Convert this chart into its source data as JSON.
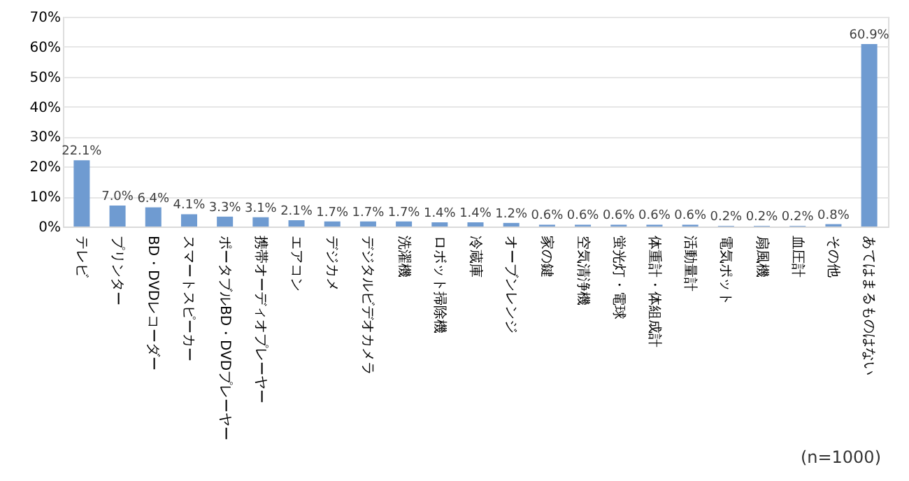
{
  "chart_data": {
    "type": "bar",
    "categories": [
      "テレビ",
      "プリンター",
      "BD・DVDレコーダー",
      "スマートスピーカー",
      "ポータブルBD・DVDプレーヤー",
      "携帯オーディオプレーヤー",
      "エアコン",
      "デジカメ",
      "デジタルビデオカメラ",
      "洗濯機",
      "ロボット掃除機",
      "冷蔵庫",
      "オーブンレンジ",
      "家の鍵",
      "空気清浄機",
      "蛍光灯・電球",
      "体重計・体組成計",
      "活動量計",
      "電気ポット",
      "扇風機",
      "血圧計",
      "その他",
      "あてはまるものはない"
    ],
    "values": [
      22.1,
      7.0,
      6.4,
      4.1,
      3.3,
      3.1,
      2.1,
      1.7,
      1.7,
      1.7,
      1.4,
      1.4,
      1.2,
      0.6,
      0.6,
      0.6,
      0.6,
      0.6,
      0.2,
      0.2,
      0.2,
      0.8,
      60.9
    ],
    "value_labels": [
      "22.1%",
      "7.0%",
      "6.4%",
      "4.1%",
      "3.3%",
      "3.1%",
      "2.1%",
      "1.7%",
      "1.7%",
      "1.7%",
      "1.4%",
      "1.4%",
      "1.2%",
      "0.6%",
      "0.6%",
      "0.6%",
      "0.6%",
      "0.6%",
      "0.2%",
      "0.2%",
      "0.2%",
      "0.8%",
      "60.9%"
    ],
    "color": "#6f9bd1",
    "ylim": [
      0,
      70
    ],
    "yticks": [
      {
        "value": 0,
        "label": "0%"
      },
      {
        "value": 10,
        "label": "10%"
      },
      {
        "value": 20,
        "label": "20%"
      },
      {
        "value": 30,
        "label": "30%"
      },
      {
        "value": 40,
        "label": "40%"
      },
      {
        "value": 50,
        "label": "50%"
      },
      {
        "value": 60,
        "label": "60%"
      },
      {
        "value": 70,
        "label": "70%"
      }
    ],
    "grid": "y",
    "annotations": [
      "(n=1000)"
    ]
  }
}
